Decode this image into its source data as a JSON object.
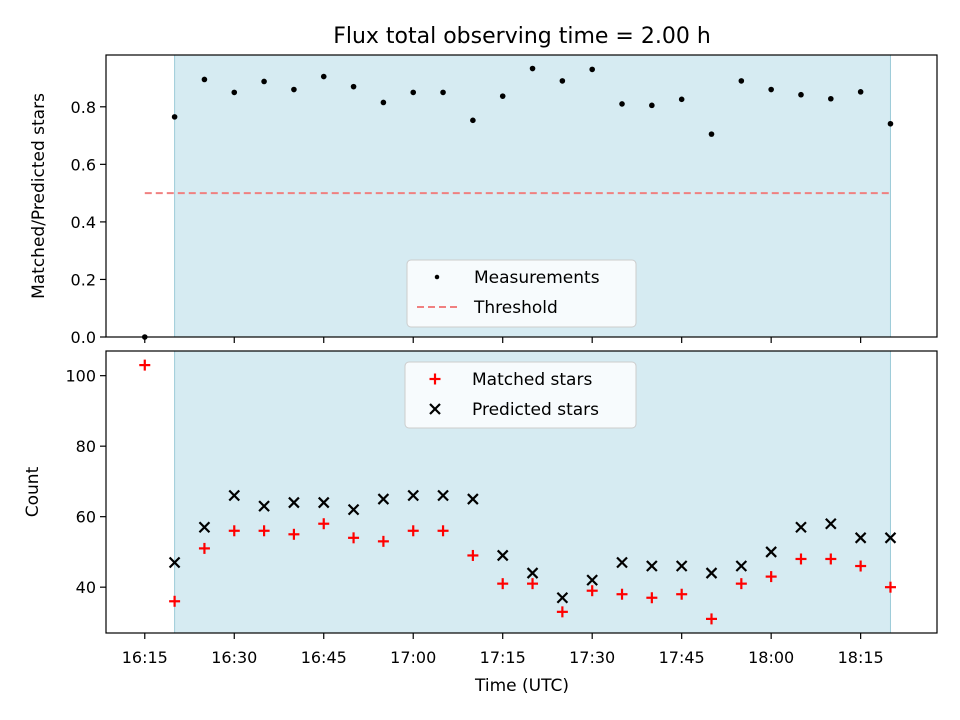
{
  "chart_data": {
    "title": "Flux total observing time = 2.00 h",
    "xlabel": "Time (UTC)",
    "x_tick_labels": [
      "16:15",
      "16:30",
      "16:45",
      "17:00",
      "17:15",
      "17:30",
      "17:45",
      "18:00",
      "18:15"
    ],
    "highlight_color": "#add8e6",
    "panels": [
      {
        "type": "scatter",
        "ylabel": "Matched/Predicted stars",
        "ylim": [
          0.0,
          0.98
        ],
        "y_ticks": [
          "0.0",
          "0.2",
          "0.4",
          "0.6",
          "0.8"
        ],
        "y_tick_values": [
          0.0,
          0.2,
          0.4,
          0.6,
          0.8
        ],
        "highlight_x_range": [
          "16:20",
          "18:20"
        ],
        "series": [
          {
            "name": "Measurements",
            "marker": "dot",
            "color": "#000000",
            "x": [
              "16:15",
              "16:20",
              "16:25",
              "16:30",
              "16:35",
              "16:40",
              "16:45",
              "16:50",
              "16:55",
              "17:00",
              "17:05",
              "17:10",
              "17:15",
              "17:20",
              "17:25",
              "17:30",
              "17:35",
              "17:40",
              "17:45",
              "17:50",
              "17:55",
              "18:00",
              "18:05",
              "18:10",
              "18:15",
              "18:20"
            ],
            "y": [
              0.0,
              0.765,
              0.895,
              0.85,
              0.888,
              0.86,
              0.905,
              0.87,
              0.815,
              0.85,
              0.85,
              0.753,
              0.837,
              0.933,
              0.89,
              0.93,
              0.81,
              0.805,
              0.826,
              0.705,
              0.89,
              0.86,
              0.842,
              0.828,
              0.852,
              0.741
            ]
          },
          {
            "name": "Threshold",
            "marker": "dashed-line",
            "color": "#f08080",
            "x": [
              "16:15",
              "18:20"
            ],
            "y": [
              0.5,
              0.5
            ]
          }
        ],
        "legend_position": "bottom-center"
      },
      {
        "type": "scatter",
        "ylabel": "Count",
        "ylim": [
          27,
          107
        ],
        "y_ticks": [
          "40",
          "60",
          "80",
          "100"
        ],
        "y_tick_values": [
          40,
          60,
          80,
          100
        ],
        "highlight_x_range": [
          "16:20",
          "18:20"
        ],
        "series": [
          {
            "name": "Matched stars",
            "marker": "plus",
            "color": "#ff0000",
            "x": [
              "16:15",
              "16:20",
              "16:25",
              "16:30",
              "16:35",
              "16:40",
              "16:45",
              "16:50",
              "16:55",
              "17:00",
              "17:05",
              "17:10",
              "17:15",
              "17:20",
              "17:25",
              "17:30",
              "17:35",
              "17:40",
              "17:45",
              "17:50",
              "17:55",
              "18:00",
              "18:05",
              "18:10",
              "18:15",
              "18:20"
            ],
            "y": [
              103,
              36,
              51,
              56,
              56,
              55,
              58,
              54,
              53,
              56,
              56,
              49,
              41,
              41,
              33,
              39,
              38,
              37,
              38,
              31,
              41,
              43,
              48,
              48,
              46,
              40
            ]
          },
          {
            "name": "Predicted stars",
            "marker": "x",
            "color": "#000000",
            "x": [
              "16:20",
              "16:25",
              "16:30",
              "16:35",
              "16:40",
              "16:45",
              "16:50",
              "16:55",
              "17:00",
              "17:05",
              "17:10",
              "17:15",
              "17:20",
              "17:25",
              "17:30",
              "17:35",
              "17:40",
              "17:45",
              "17:50",
              "17:55",
              "18:00",
              "18:05",
              "18:10",
              "18:15",
              "18:20"
            ],
            "y": [
              47,
              57,
              66,
              63,
              64,
              64,
              62,
              65,
              66,
              66,
              65,
              49,
              44,
              37,
              42,
              47,
              46,
              46,
              44,
              46,
              50,
              57,
              58,
              54,
              54
            ]
          }
        ],
        "legend_position": "top-center"
      }
    ]
  }
}
